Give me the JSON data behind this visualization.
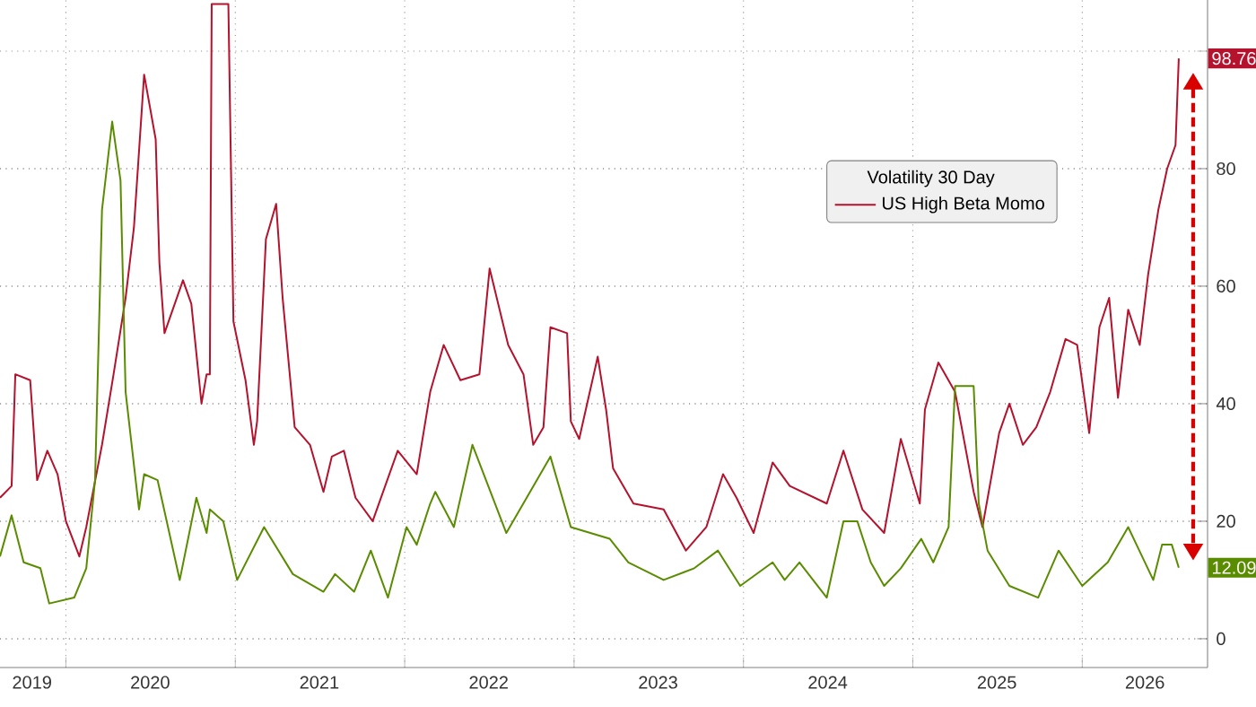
{
  "chart_data": {
    "type": "line",
    "legend_title": "Volatility 30 Day",
    "xlim": [
      "2019-08-12",
      "2026-09-28"
    ],
    "ylim": [
      -4.9,
      108.7
    ],
    "xticks": [
      {
        "value": "2020-01-01",
        "label": null
      },
      {
        "value": "2021-01-01",
        "label": null
      },
      {
        "value": "2022-01-01",
        "label": null
      },
      {
        "value": "2023-01-01",
        "label": null
      },
      {
        "value": "2024-01-01",
        "label": null
      },
      {
        "value": "2025-01-01",
        "label": null
      },
      {
        "value": "2026-01-01",
        "label": null
      },
      {
        "value": "2019-10-20",
        "label": "2019"
      },
      {
        "value": "2020-07-01",
        "label": "2020"
      },
      {
        "value": "2021-07-01",
        "label": "2021"
      },
      {
        "value": "2022-07-01",
        "label": "2022"
      },
      {
        "value": "2023-07-01",
        "label": "2023"
      },
      {
        "value": "2024-07-01",
        "label": "2024"
      },
      {
        "value": "2025-07-01",
        "label": "2025"
      },
      {
        "value": "2026-05-16",
        "label": "2026"
      }
    ],
    "yticks": [
      0,
      20,
      40,
      60,
      80,
      {
        "value": 100,
        "label": null
      }
    ],
    "grid": true,
    "legend": "right",
    "series": [
      {
        "name": "US High Beta Momo",
        "color": "#b5122d",
        "x": [
          "2019-08-12",
          "2019-09-06",
          "2019-09-14",
          "2019-10-16",
          "2019-10-31",
          "2019-11-22",
          "2019-12-14",
          "2020-01-01",
          "2020-01-30",
          "2020-02-14",
          "2020-03-19",
          "2020-04-13",
          "2020-05-09",
          "2020-05-27",
          "2020-06-18",
          "2020-07-13",
          "2020-07-21",
          "2020-08-01",
          "2020-09-10",
          "2020-09-28",
          "2020-10-20",
          "2020-10-31",
          "2020-11-07",
          "2020-11-11",
          "2020-12-17",
          "2020-12-28",
          "2021-01-23",
          "2021-02-10",
          "2021-02-17",
          "2021-03-08",
          "2021-03-30",
          "2021-04-13",
          "2021-05-09",
          "2021-06-11",
          "2021-07-10",
          "2021-07-28",
          "2021-08-23",
          "2021-09-17",
          "2021-10-24",
          "2021-12-17",
          "2022-01-27",
          "2022-02-25",
          "2022-03-26",
          "2022-05-01",
          "2022-06-11",
          "2022-07-03",
          "2022-08-12",
          "2022-09-14",
          "2022-10-05",
          "2022-10-27",
          "2022-11-11",
          "2022-12-17",
          "2022-12-25",
          "2023-01-12",
          "2023-02-21",
          "2023-03-11",
          "2023-03-26",
          "2023-05-09",
          "2023-07-13",
          "2023-08-30",
          "2023-10-13",
          "2023-11-18",
          "2023-12-17",
          "2024-01-23",
          "2024-03-04",
          "2024-04-10",
          "2024-06-29",
          "2024-08-04",
          "2024-09-14",
          "2024-10-31",
          "2024-12-06",
          "2025-01-16",
          "2025-01-27",
          "2025-02-25",
          "2025-04-02",
          "2025-05-12",
          "2025-05-31",
          "2025-07-06",
          "2025-07-28",
          "2025-08-26",
          "2025-09-24",
          "2025-10-24",
          "2025-11-26",
          "2025-12-21",
          "2026-01-16",
          "2026-02-07",
          "2026-02-28",
          "2026-03-19",
          "2026-04-10",
          "2026-05-05",
          "2026-05-23",
          "2026-06-14",
          "2026-07-03",
          "2026-07-21",
          "2026-07-28"
        ],
        "values": [
          24,
          26,
          45,
          44,
          27,
          32,
          28,
          20,
          14,
          19,
          33,
          45,
          58,
          70,
          96,
          85,
          64,
          52,
          61,
          57,
          40,
          45,
          45,
          108,
          108,
          54,
          44,
          33,
          37,
          68,
          74,
          58,
          36,
          33,
          25,
          31,
          32,
          24,
          20,
          32,
          28,
          42,
          50,
          44,
          45,
          63,
          50,
          45,
          33,
          36,
          53,
          52,
          37,
          34,
          48,
          39,
          29,
          23,
          22,
          15,
          19,
          28,
          24,
          18,
          30,
          26,
          23,
          32,
          22,
          18,
          34,
          23,
          39,
          47,
          42,
          25,
          19,
          35,
          40,
          33,
          36,
          42,
          51,
          50,
          35,
          53,
          58,
          41,
          56,
          50,
          62,
          73,
          80,
          84,
          98.76
        ]
      },
      {
        "color": "#5a8c00",
        "x": [
          "2019-08-12",
          "2019-09-06",
          "2019-10-02",
          "2019-11-07",
          "2019-11-26",
          "2020-01-19",
          "2020-02-14",
          "2020-03-04",
          "2020-03-19",
          "2020-04-10",
          "2020-04-28",
          "2020-05-09",
          "2020-06-07",
          "2020-06-18",
          "2020-07-17",
          "2020-09-03",
          "2020-10-09",
          "2020-10-31",
          "2020-11-07",
          "2020-12-06",
          "2021-01-05",
          "2021-03-04",
          "2021-05-05",
          "2021-07-10",
          "2021-08-04",
          "2021-09-14",
          "2021-10-20",
          "2021-11-26",
          "2022-01-05",
          "2022-01-27",
          "2022-02-25",
          "2022-03-08",
          "2022-04-17",
          "2022-05-27",
          "2022-08-08",
          "2022-11-11",
          "2022-12-25",
          "2023-03-19",
          "2023-04-28",
          "2023-07-13",
          "2023-09-17",
          "2023-11-07",
          "2023-12-25",
          "2024-03-04",
          "2024-03-30",
          "2024-05-01",
          "2024-06-29",
          "2024-08-04",
          "2024-09-03",
          "2024-10-02",
          "2024-10-31",
          "2024-12-06",
          "2025-01-19",
          "2025-02-14",
          "2025-03-19",
          "2025-04-02",
          "2025-05-12",
          "2025-05-23",
          "2025-06-11",
          "2025-07-28",
          "2025-09-28",
          "2025-11-11",
          "2026-01-01",
          "2026-02-25",
          "2026-04-10",
          "2026-06-03",
          "2026-06-22",
          "2026-07-13",
          "2026-07-28"
        ],
        "values": [
          14,
          21,
          13,
          12,
          6,
          7,
          12,
          27,
          73,
          88,
          78,
          42,
          22,
          28,
          27,
          10,
          24,
          18,
          22,
          20,
          10,
          19,
          11,
          8,
          11,
          8,
          15,
          7,
          19,
          16,
          23,
          25,
          19,
          33,
          18,
          31,
          19,
          17,
          13,
          10,
          12,
          15,
          9,
          13,
          10,
          13,
          7,
          20,
          20,
          13,
          9,
          12,
          17,
          13,
          19,
          43,
          43,
          23,
          15,
          9,
          7,
          15,
          9,
          13,
          19,
          10,
          16,
          16,
          12.09
        ]
      }
    ],
    "annotations": [
      {
        "text": "98.76",
        "x": "2026-07-28",
        "y": 98.76
      },
      {
        "text": "12.09",
        "x": "2026-07-28",
        "y": 12.09
      }
    ]
  }
}
